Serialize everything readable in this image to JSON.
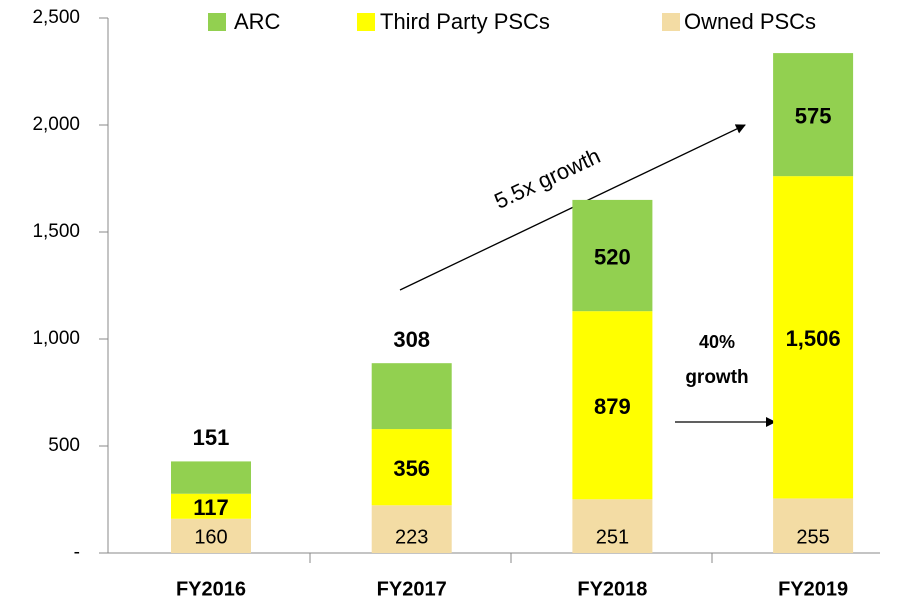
{
  "chart_data": {
    "type": "stacked_bar",
    "categories": [
      "FY2016",
      "FY2017",
      "FY2018",
      "FY2019"
    ],
    "series": [
      {
        "name": "Owned PSCs",
        "color": "#f3dca4",
        "values": [
          160,
          223,
          251,
          255
        ]
      },
      {
        "name": "Third Party PSCs",
        "color": "#ffff00",
        "values": [
          117,
          356,
          879,
          1506
        ],
        "value_labels": [
          "117",
          "356",
          "879",
          "1,506"
        ]
      },
      {
        "name": "ARC",
        "color": "#92d050",
        "values": [
          151,
          308,
          520,
          575
        ]
      }
    ],
    "ylim": [
      0,
      2500
    ],
    "yticks": [
      {
        "value": 0,
        "label": "-"
      },
      500,
      {
        "value": 1000,
        "label": "1,000"
      },
      {
        "value": 1500,
        "label": "1,500"
      },
      {
        "value": 2000,
        "label": "2,000"
      },
      {
        "value": 2500,
        "label": "2,500"
      }
    ],
    "grid": false,
    "annotations": [
      "5.5x growth",
      "40%",
      "growth"
    ]
  }
}
